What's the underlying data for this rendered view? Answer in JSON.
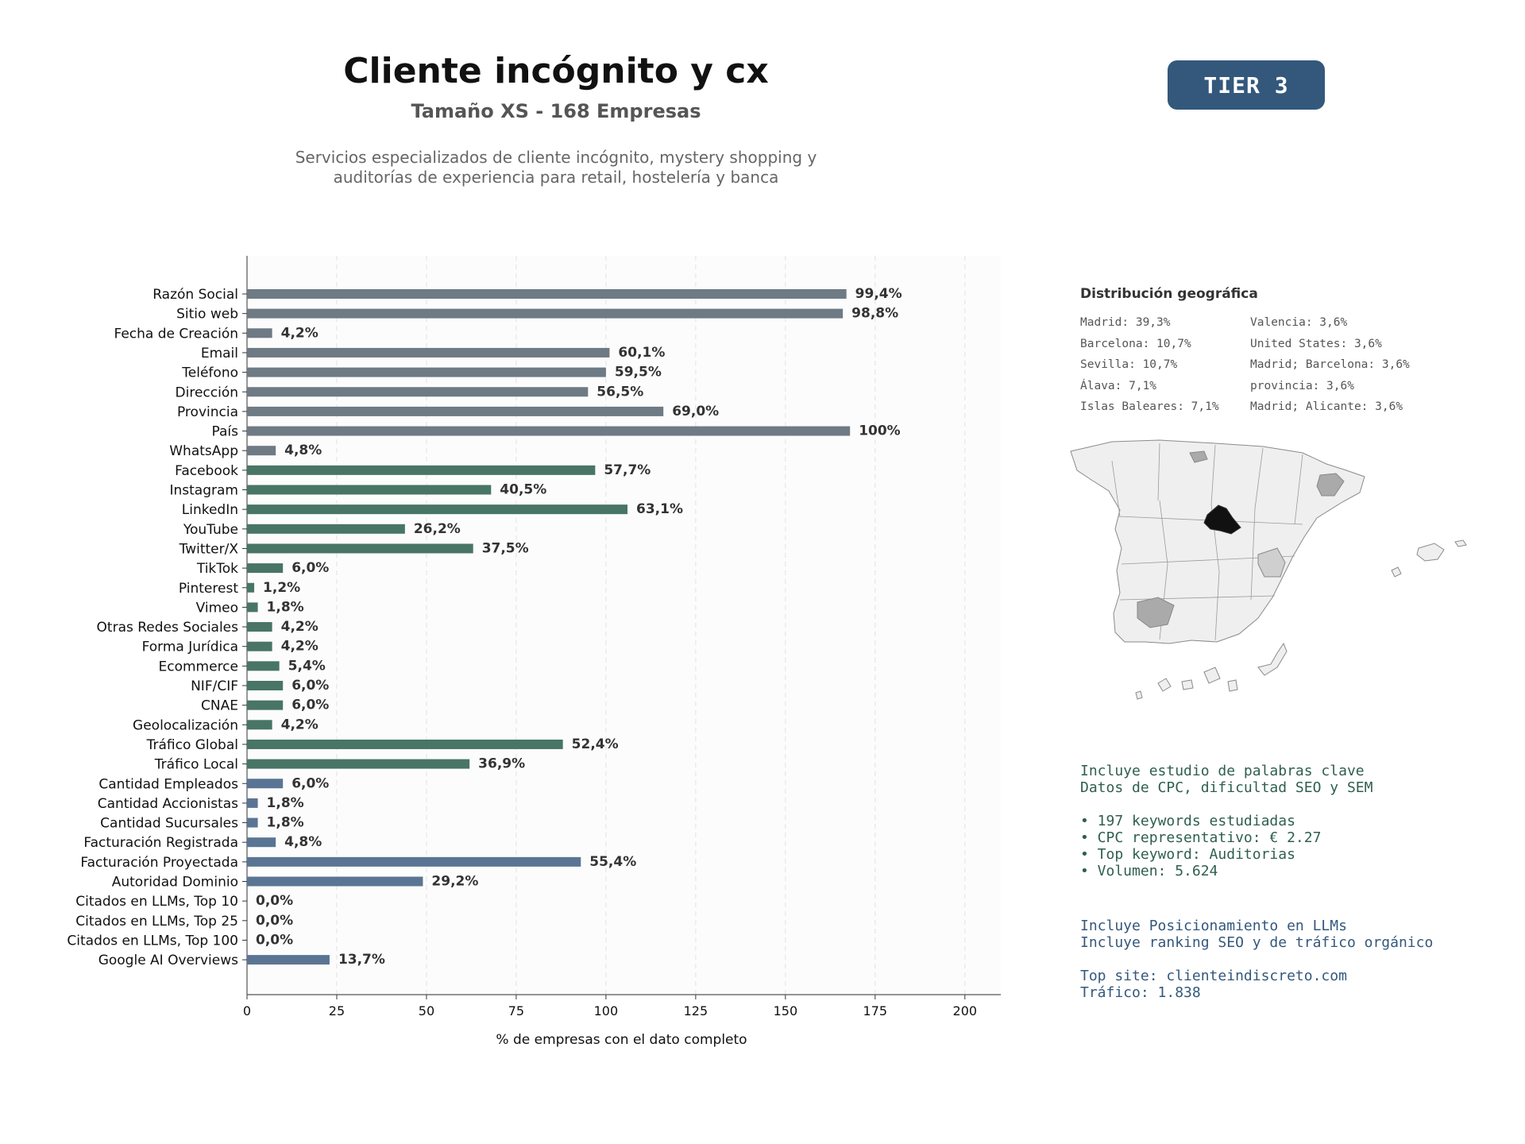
{
  "header": {
    "title": "Cliente incógnito y cx",
    "subtitle": "Tamaño XS - 168 Empresas",
    "description_line1": "Servicios especializados de cliente incógnito, mystery shopping y",
    "description_line2": "auditorías de experiencia para retail, hostelería y banca",
    "tier": "TIER 3"
  },
  "chart_data": {
    "type": "bar",
    "orientation": "horizontal",
    "xlabel": "% de empresas con el dato completo",
    "ylabel": "",
    "xlim": [
      0,
      210
    ],
    "xticks": [
      0,
      25,
      50,
      75,
      100,
      125,
      150,
      175,
      200
    ],
    "grid": "vertical dashed",
    "group_colors": {
      "base": "#6e7a84",
      "social": "#487565",
      "business": "#5a7593"
    },
    "categories": [
      "Razón Social",
      "Sitio web",
      "Fecha de Creación",
      "Email",
      "Teléfono",
      "Dirección",
      "Provincia",
      "País",
      "WhatsApp",
      "Facebook",
      "Instagram",
      "LinkedIn",
      "YouTube",
      "Twitter/X",
      "TikTok",
      "Pinterest",
      "Vimeo",
      "Otras Redes Sociales",
      "Forma Jurídica",
      "Ecommerce",
      "NIF/CIF",
      "CNAE",
      "Geolocalización",
      "Tráfico Global",
      "Tráfico Local",
      "Cantidad Empleados",
      "Cantidad Accionistas",
      "Cantidad Sucursales",
      "Facturación Registrada",
      "Facturación Proyectada",
      "Autoridad Dominio",
      "Citados en LLMs, Top 10",
      "Citados en LLMs, Top 25",
      "Citados en LLMs, Top 100",
      "Google AI Overviews"
    ],
    "values": [
      167,
      166,
      7,
      101,
      100,
      95,
      116,
      168,
      8,
      97,
      68,
      106,
      44,
      63,
      10,
      2,
      3,
      7,
      7,
      9,
      10,
      10,
      7,
      88,
      62,
      10,
      3,
      3,
      8,
      93,
      49,
      0,
      0,
      0,
      23
    ],
    "labels": [
      "99,4%",
      "98,8%",
      "4,2%",
      "60,1%",
      "59,5%",
      "56,5%",
      "69,0%",
      "100%",
      "4,8%",
      "57,7%",
      "40,5%",
      "63,1%",
      "26,2%",
      "37,5%",
      "6,0%",
      "1,2%",
      "1,8%",
      "4,2%",
      "4,2%",
      "5,4%",
      "6,0%",
      "6,0%",
      "4,2%",
      "52,4%",
      "36,9%",
      "6,0%",
      "1,8%",
      "1,8%",
      "4,8%",
      "55,4%",
      "29,2%",
      "0,0%",
      "0,0%",
      "0,0%",
      "13,7%"
    ],
    "groups": [
      "base",
      "base",
      "base",
      "base",
      "base",
      "base",
      "base",
      "base",
      "base",
      "social",
      "social",
      "social",
      "social",
      "social",
      "social",
      "social",
      "social",
      "social",
      "social",
      "social",
      "social",
      "social",
      "social",
      "social",
      "social",
      "business",
      "business",
      "business",
      "business",
      "business",
      "business",
      "business",
      "business",
      "business",
      "business"
    ]
  },
  "geo": {
    "title": "Distribución geográfica",
    "items": [
      "Madrid: 39,3%",
      "Valencia: 3,6%",
      "Barcelona: 10,7%",
      "United States: 3,6%",
      "Sevilla: 10,7%",
      "Madrid; Barcelona: 3,6%",
      "Álava: 7,1%",
      "provincia: 3,6%",
      "Islas Baleares: 7,1%",
      "Madrid; Alicante: 3,6%"
    ]
  },
  "keywords": {
    "lines": [
      "Incluye estudio de palabras clave",
      "Datos de CPC, dificultad SEO y SEM",
      "",
      "• 197 keywords estudiadas",
      "• CPC representativo: € 2.27",
      "• Top keyword: Auditorias",
      "• Volumen: 5.624"
    ]
  },
  "llm": {
    "lines": [
      "Incluye Posicionamiento en LLMs",
      "Incluye ranking SEO y de tráfico orgánico",
      "",
      "Top site: clienteindiscreto.com",
      "Tráfico: 1.838"
    ]
  }
}
